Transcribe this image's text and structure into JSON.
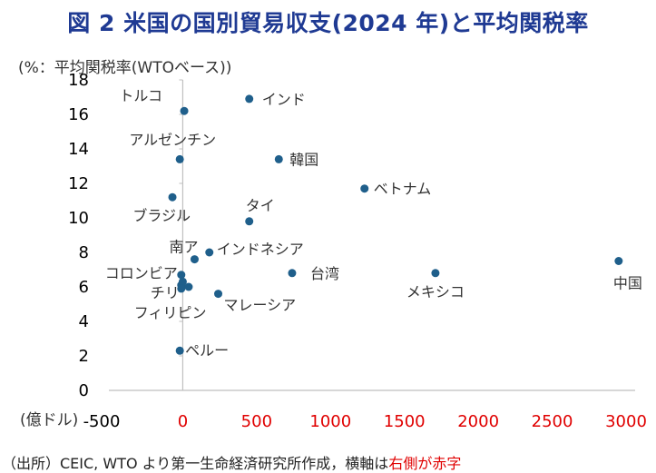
{
  "title": "図 2  米国の国別貿易収支(2024 年)と平均関税率",
  "source": {
    "prefix": "（出所）CEIC, WTO より第一生命経済研究所作成，横軸は",
    "highlight": "右側が赤字",
    "highlight_color": "#e00000"
  },
  "chart_data": {
    "type": "scatter",
    "ylabel": "(%：平均関税率(WTOベース))",
    "xlabel": "(億ドル)",
    "xlim": [
      -500,
      3000
    ],
    "ylim": [
      0,
      18
    ],
    "x_ticks": [
      -500,
      0,
      500,
      1000,
      1500,
      2000,
      2500,
      3000
    ],
    "x_tick_labels": [
      "-500",
      "0",
      "500",
      "1000",
      "1500",
      "2000",
      "2500",
      "3000"
    ],
    "x_tick_colors": [
      "#000000",
      "#e00000",
      "#e00000",
      "#e00000",
      "#e00000",
      "#e00000",
      "#e00000",
      "#e00000"
    ],
    "y_ticks": [
      0,
      2,
      4,
      6,
      8,
      10,
      12,
      14,
      16,
      18
    ],
    "marker_color": "#1f5f8b",
    "grid": false,
    "points": [
      {
        "label": "トルコ",
        "x": 10,
        "y": 16.2
      },
      {
        "label": "インド",
        "x": 450,
        "y": 16.9
      },
      {
        "label": "アルゼンチン",
        "x": -20,
        "y": 13.4
      },
      {
        "label": "韓国",
        "x": 650,
        "y": 13.4
      },
      {
        "label": "ベトナム",
        "x": 1230,
        "y": 11.7
      },
      {
        "label": "ブラジル",
        "x": -70,
        "y": 11.2
      },
      {
        "label": "タイ",
        "x": 450,
        "y": 9.8
      },
      {
        "label": "南ア",
        "x": 80,
        "y": 7.6
      },
      {
        "label": "インドネシア",
        "x": 180,
        "y": 8.0
      },
      {
        "label": "コロンビア",
        "x": -10,
        "y": 6.7
      },
      {
        "label": "台湾",
        "x": 740,
        "y": 6.8
      },
      {
        "label": "メキシコ",
        "x": 1710,
        "y": 6.8
      },
      {
        "label": "中国",
        "x": 2950,
        "y": 7.5
      },
      {
        "label": "チリ",
        "x": -10,
        "y": 6.1
      },
      {
        "label": "",
        "x": 0,
        "y": 6.3
      },
      {
        "label": "",
        "x": 40,
        "y": 6.0
      },
      {
        "label": "マレーシア",
        "x": 240,
        "y": 5.6
      },
      {
        "label": "フィリピン",
        "x": -10,
        "y": 5.9
      },
      {
        "label": "ペルー",
        "x": -20,
        "y": 2.3
      }
    ]
  }
}
